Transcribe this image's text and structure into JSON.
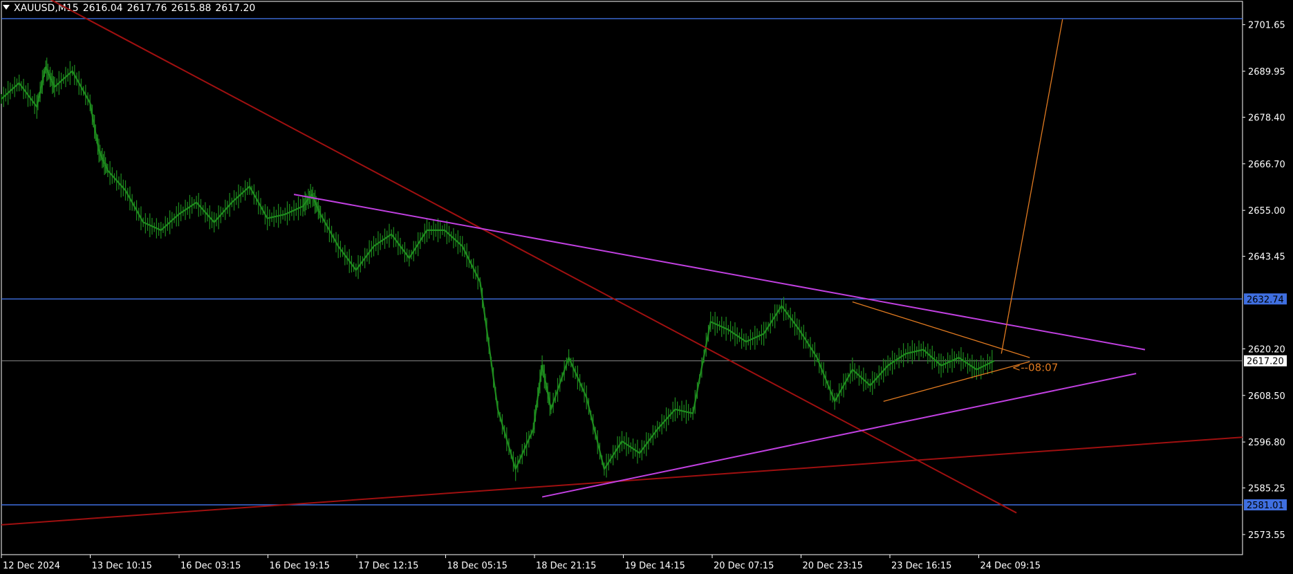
{
  "header": {
    "symbol": "XAUUSD,M15",
    "open": "2616.04",
    "high": "2617.76",
    "low": "2615.88",
    "close": "2617.20"
  },
  "colors": {
    "background": "#000000",
    "candles": "#1e8c1e",
    "hline": "#3f6fe0",
    "trend_red": "#a01010",
    "trend_violet": "#c040e0",
    "trend_orange": "#e07a20",
    "axis_text": "#ffffff",
    "price_tag_bg": "#3f6fe0"
  },
  "chart_data": {
    "type": "line",
    "title": "",
    "xlabel": "",
    "ylabel": "",
    "ylim": [
      2568.5,
      2707.5
    ],
    "y_ticks": [
      "2701.65",
      "2689.95",
      "2678.40",
      "2666.70",
      "2655.00",
      "2643.45",
      "2632.74",
      "2620.20",
      "2617.20",
      "2608.50",
      "2596.80",
      "2585.25",
      "2581.01",
      "2573.55"
    ],
    "x_ticks": [
      "12 Dec 2024",
      "13 Dec 10:15",
      "16 Dec 03:15",
      "16 Dec 19:15",
      "17 Dec 12:15",
      "18 Dec 05:15",
      "18 Dec 21:15",
      "19 Dec 14:15",
      "20 Dec 07:15",
      "20 Dec 23:15",
      "23 Dec 16:15",
      "24 Dec 09:15"
    ],
    "x_range": [
      0,
      14.0
    ],
    "series": [
      {
        "x": [
          0,
          0.2,
          0.4,
          0.5,
          0.6,
          0.8,
          1.0,
          1.1,
          1.2,
          1.4,
          1.6,
          1.8,
          2.0,
          2.2,
          2.4,
          2.6,
          2.8,
          3.0,
          3.2,
          3.4,
          3.5,
          3.6,
          3.8,
          4.0,
          4.2,
          4.4,
          4.6,
          4.8,
          5.0,
          5.2,
          5.4,
          5.6,
          5.8,
          6.0,
          6.1,
          6.2,
          6.4,
          6.6,
          6.8,
          7.0,
          7.2,
          7.4,
          7.6,
          7.8,
          8.0,
          8.2,
          8.4,
          8.6,
          8.8,
          9.0,
          9.2,
          9.4,
          9.6,
          9.8,
          10.0,
          10.2,
          10.4,
          10.6,
          10.8,
          11.0,
          11.2
        ],
        "values": [
          2683,
          2687,
          2681,
          2691,
          2686,
          2690,
          2682,
          2670,
          2665,
          2660,
          2652,
          2650,
          2654,
          2657,
          2652,
          2657,
          2661,
          2653,
          2654,
          2656,
          2659,
          2654,
          2646,
          2640,
          2646,
          2649,
          2643,
          2650,
          2650,
          2646,
          2637,
          2605,
          2590,
          2600,
          2616,
          2605,
          2618,
          2608,
          2590,
          2597,
          2594,
          2600,
          2605,
          2604,
          2627,
          2625,
          2622,
          2624,
          2631,
          2625,
          2618,
          2607,
          2615,
          2611,
          2616,
          2619,
          2620,
          2616,
          2618,
          2615,
          2617.2
        ]
      }
    ],
    "horizontal_levels": [
      2703.17,
      2632.74,
      2581.01
    ],
    "current_price": 2617.2,
    "trendlines": [
      {
        "name": "red-downtrend",
        "color": "#a01010",
        "points": [
          [
            0.55,
            2708
          ],
          [
            11.45,
            2579
          ]
        ]
      },
      {
        "name": "red-uptrend",
        "color": "#a01010",
        "points": [
          [
            0,
            2576
          ],
          [
            14.0,
            2598
          ]
        ]
      },
      {
        "name": "violet-upper",
        "color": "#c040e0",
        "points": [
          [
            3.3,
            2659
          ],
          [
            12.9,
            2620
          ]
        ]
      },
      {
        "name": "violet-lower",
        "color": "#c040e0",
        "points": [
          [
            6.1,
            2583
          ],
          [
            12.8,
            2614
          ]
        ]
      },
      {
        "name": "orange-upper",
        "color": "#e07a20",
        "points": [
          [
            9.6,
            2632
          ],
          [
            11.6,
            2618
          ]
        ]
      },
      {
        "name": "orange-lower",
        "color": "#e07a20",
        "points": [
          [
            9.95,
            2607
          ],
          [
            11.6,
            2617
          ]
        ]
      },
      {
        "name": "orange-projection",
        "color": "#e07a20",
        "points": [
          [
            11.28,
            2619
          ],
          [
            11.97,
            2703
          ]
        ]
      }
    ],
    "annotation": {
      "text": "<--08:07",
      "x": 11.4,
      "y": 2615.5,
      "color": "#e07a20"
    }
  }
}
